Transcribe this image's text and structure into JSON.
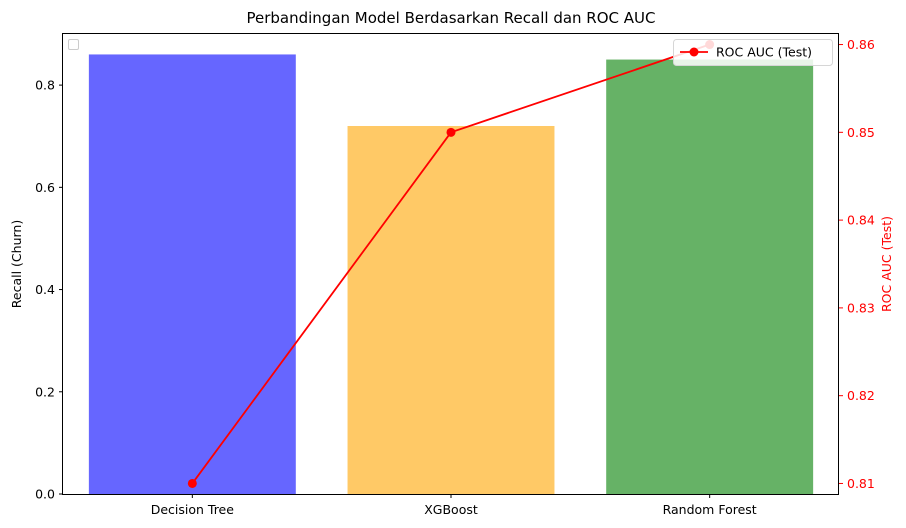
{
  "chart_data": {
    "type": "bar",
    "title": "Perbandingan Model Berdasarkan Recall dan ROC AUC",
    "categories": [
      "Decision Tree",
      "XGBoost",
      "Random Forest"
    ],
    "xlabel": "",
    "ylabel": "Recall (Churn)",
    "ylim": [
      0,
      0.9
    ],
    "yticks": [
      0.0,
      0.2,
      0.4,
      0.6,
      0.8
    ],
    "ytick_labels": [
      "0.0",
      "0.2",
      "0.4",
      "0.6",
      "0.8"
    ],
    "bars": {
      "values": [
        0.86,
        0.72,
        0.85
      ],
      "colors": [
        "#6666ff",
        "#ffc966",
        "#66b266"
      ]
    },
    "line": {
      "name": "ROC AUC (Test)",
      "values": [
        0.81,
        0.85,
        0.86
      ],
      "color": "#ff0000",
      "marker": "circle"
    },
    "y2label": "ROC AUC (Test)",
    "y2lim": [
      0.8088,
      0.8612
    ],
    "y2ticks": [
      0.81,
      0.82,
      0.83,
      0.84,
      0.85,
      0.86
    ],
    "y2tick_labels": [
      "0.81",
      "0.82",
      "0.83",
      "0.84",
      "0.85",
      "0.86"
    ],
    "y2_color": "#ff0000",
    "legend": {
      "placement": "top-right",
      "entries": [
        "ROC AUC (Test)"
      ]
    },
    "empty_legend": {
      "placement": "top-left"
    },
    "grid": false
  }
}
